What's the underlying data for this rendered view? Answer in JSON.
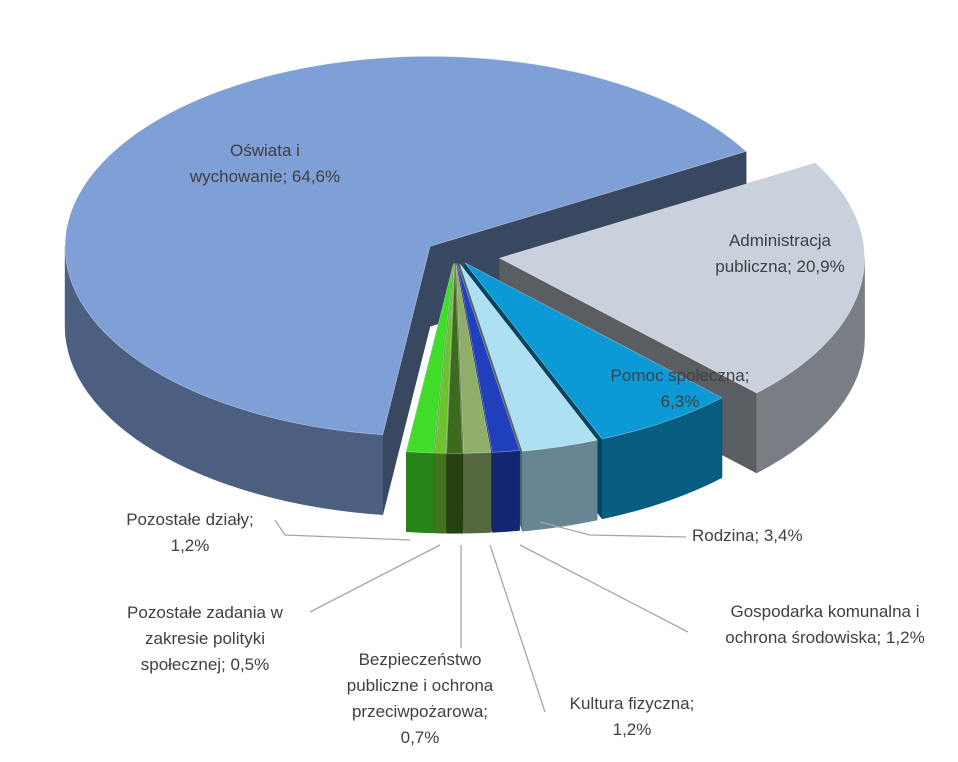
{
  "chart_data": {
    "type": "pie3d",
    "values": [
      20.9,
      6.3,
      3.4,
      1.2,
      1.2,
      0.7,
      0.5,
      1.2,
      64.6
    ],
    "value_labels": [
      "Administracja publiczna; 20,9%",
      "Pomoc społeczna; 6,3%",
      "Rodzina; 3,4%",
      "Gospodarka komunalna i ochrona środowiska; 1,2%",
      "Kultura fizyczna; 1,2%",
      "Bezpieczeństwo publiczne i ochrona przeciwpożarowa; 0,7%",
      "Pozostałe zadania w zakresie polityki społecznej; 0,5%",
      "Pozostałe działy; 1,2%",
      "Oświata i wychowanie; 64,6%"
    ],
    "colors": [
      "#c9d1dc",
      "#0c9ad6",
      "#aee0f4",
      "#1f3fbd",
      "#8fae6a",
      "#3d6b1c",
      "#6cc22f",
      "#3fdc2a",
      "#7f9fd7"
    ]
  }
}
